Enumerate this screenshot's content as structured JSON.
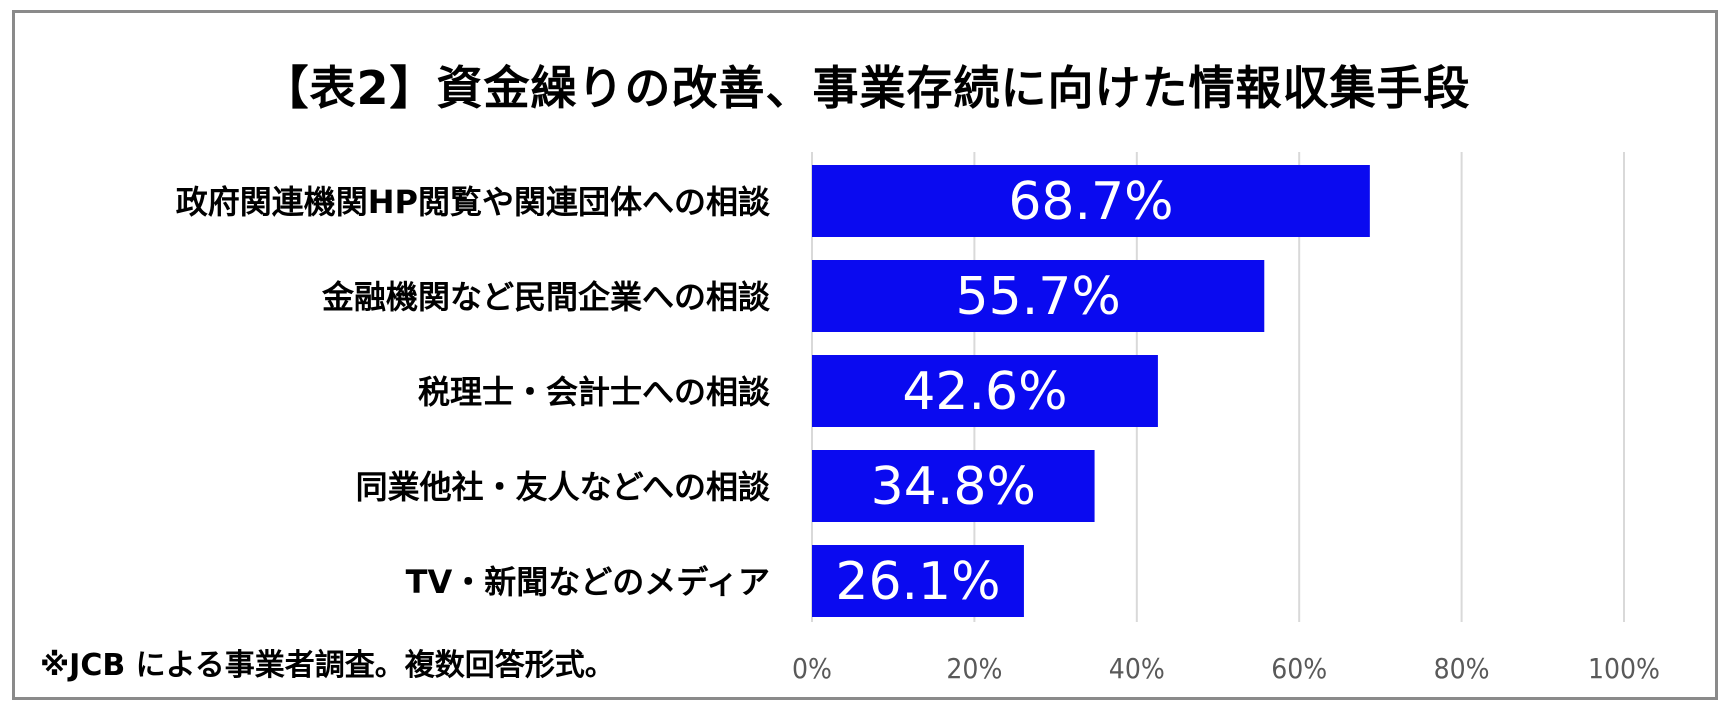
{
  "chart_data": {
    "type": "bar",
    "orientation": "horizontal",
    "title": "【表2】資金繰りの改善、事業存続に向けた情報収集手段",
    "categories": [
      "政府関連機関HP閲覧や関連団体への相談",
      "金融機関など民間企業への相談",
      "税理士・会計士への相談",
      "同業他社・友人などへの相談",
      "TV・新聞などのメディア"
    ],
    "values": [
      68.7,
      55.7,
      42.6,
      34.8,
      26.1
    ],
    "data_labels": [
      "68.7%",
      "55.7%",
      "42.6%",
      "34.8%",
      "26.1%"
    ],
    "x_ticks": [
      "0%",
      "20%",
      "40%",
      "60%",
      "80%",
      "100%"
    ],
    "xlim": [
      0,
      100
    ],
    "grid": true,
    "legend": "none",
    "bar_color": "#0a0af0",
    "label_color": "#ffffff",
    "tick_color": "#595959",
    "grid_color": "#d9d9d9"
  },
  "footnote": "※JCB による事業者調査。複数回答形式。"
}
